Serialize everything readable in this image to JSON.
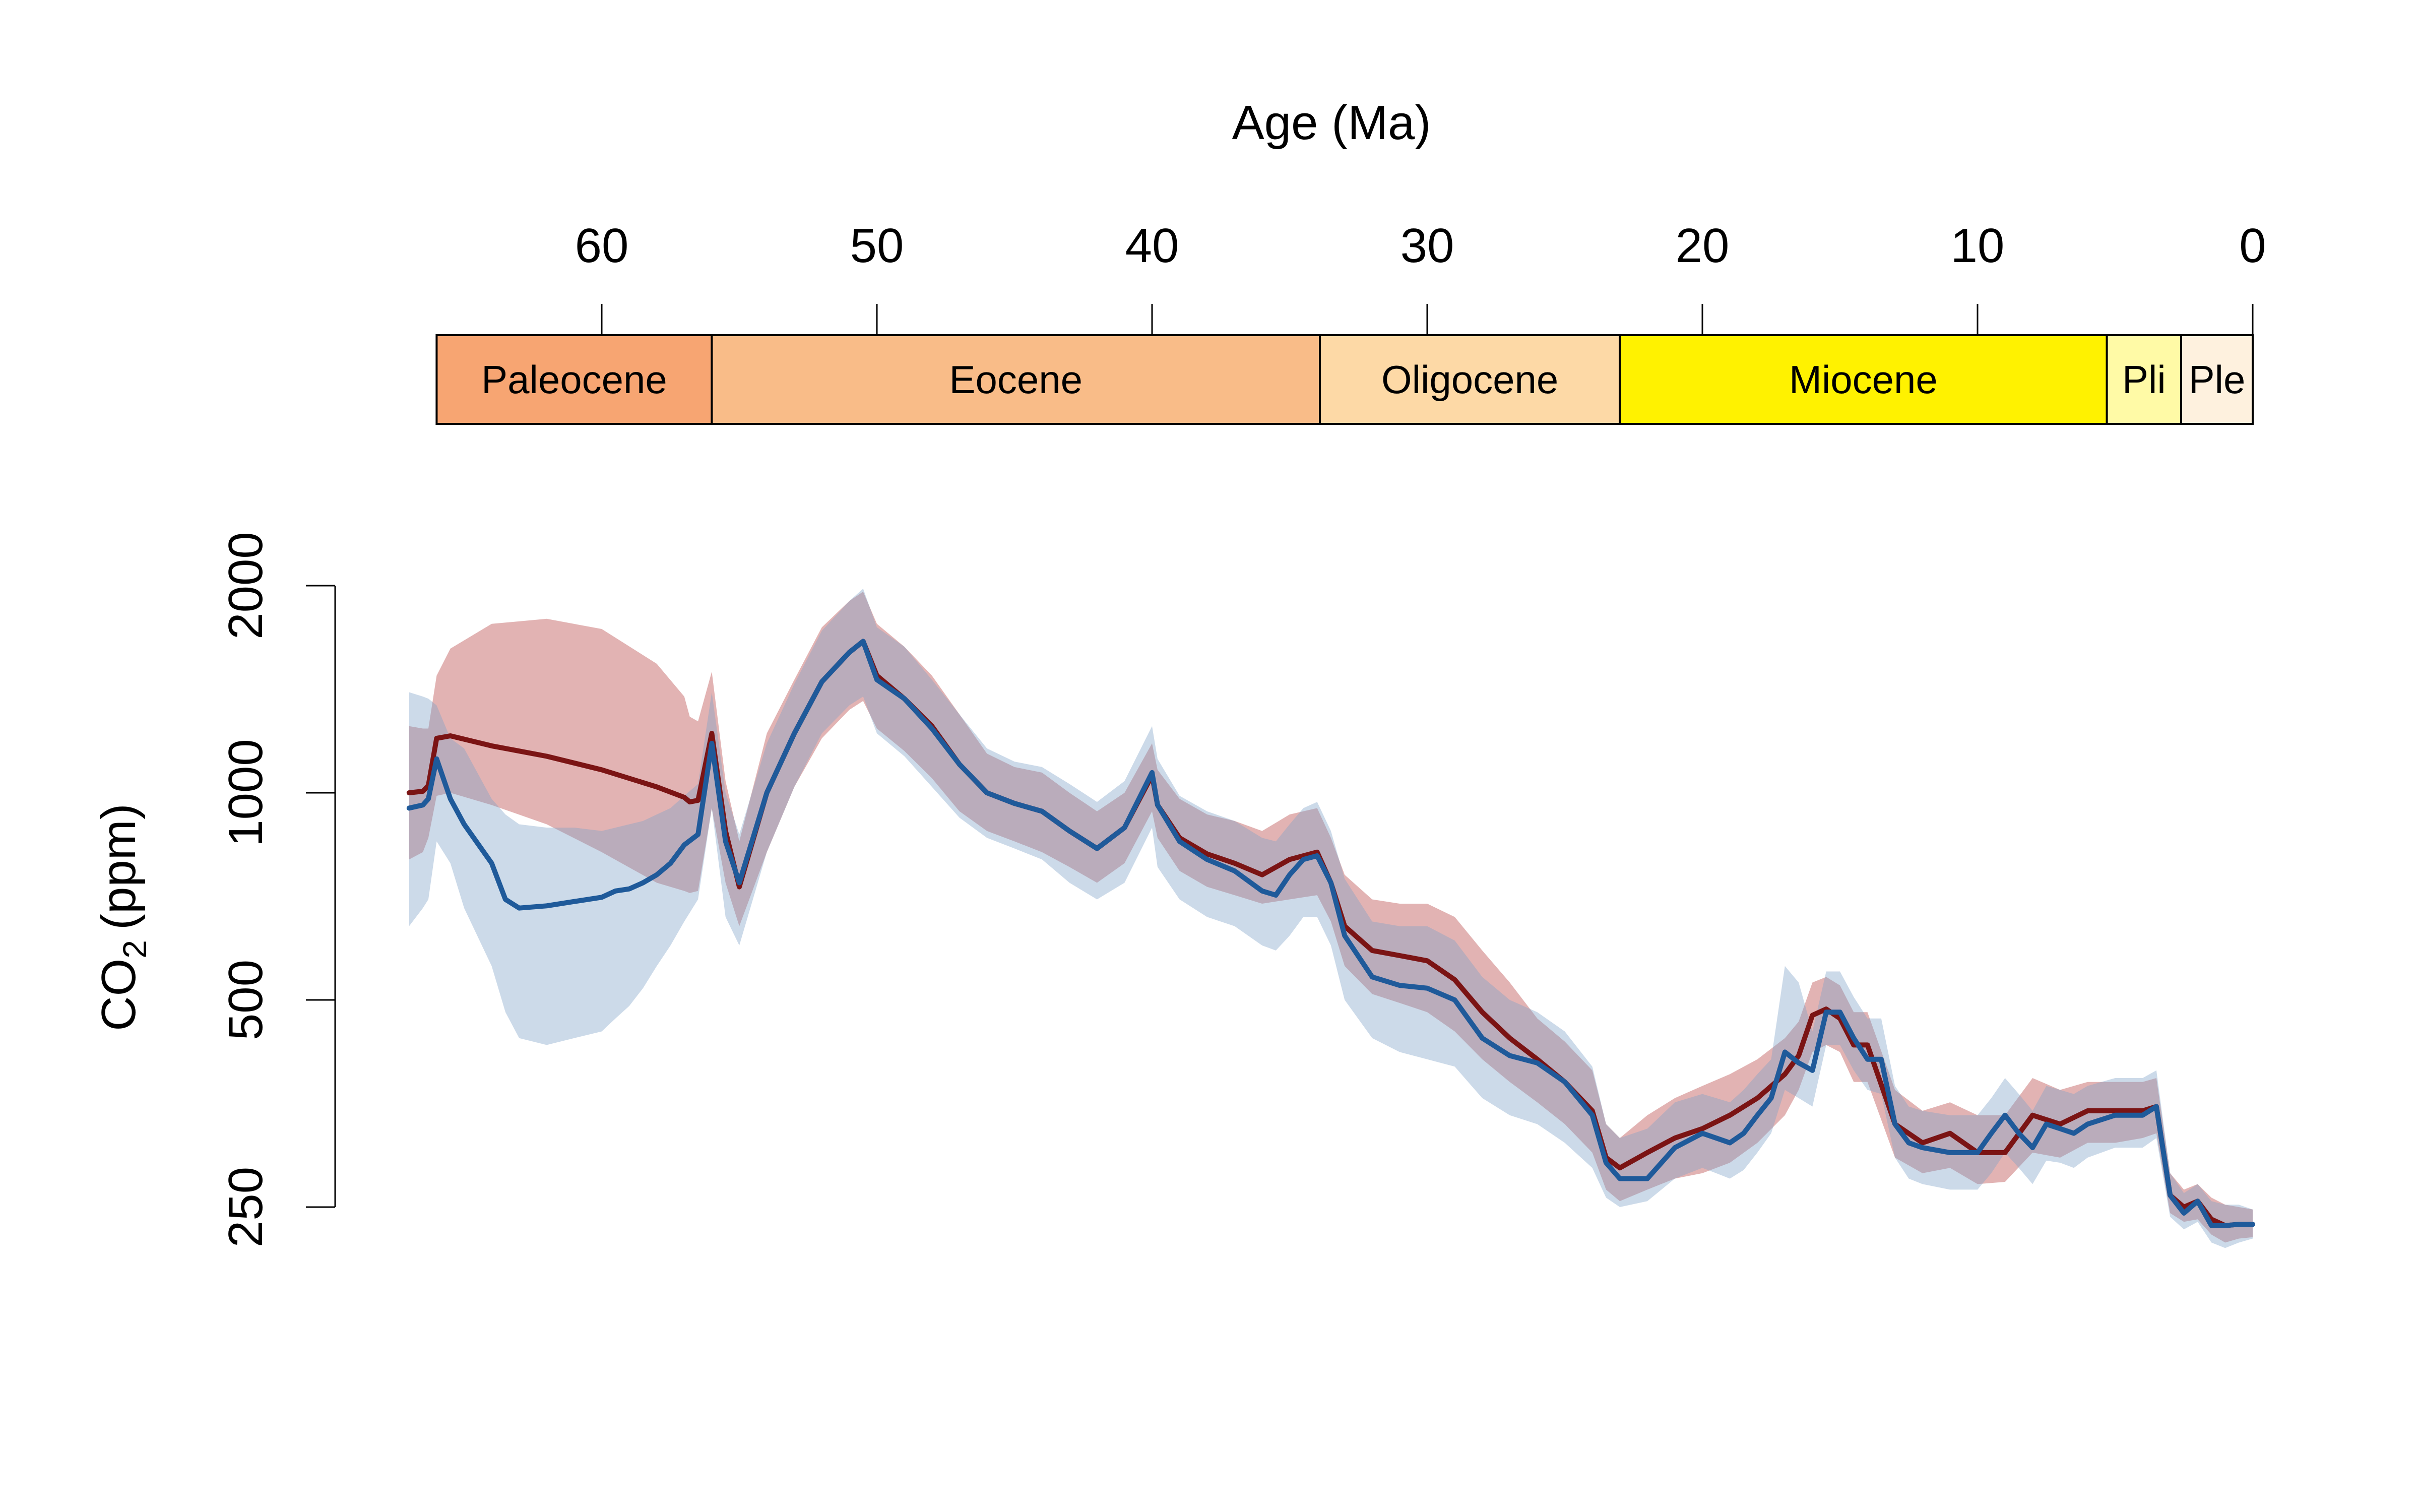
{
  "chart_data": {
    "type": "line",
    "xlabel": "Age (Ma)",
    "ylabel": "CO",
    "ylabel_sub": "2",
    "ylabel_unit": "(ppm)",
    "x_axis": {
      "range": [
        67,
        0
      ],
      "ticks": [
        60,
        50,
        40,
        30,
        20,
        10,
        0
      ],
      "tick_labels": [
        "60",
        "50",
        "40",
        "30",
        "20",
        "10",
        "0"
      ],
      "position": "top"
    },
    "y_axis": {
      "scale": "log",
      "range": [
        250,
        2000
      ],
      "ticks": [
        250,
        500,
        1000,
        2000
      ],
      "tick_labels": [
        "250",
        "500",
        "1000",
        "2000"
      ]
    },
    "epochs": [
      {
        "name": "Paleocene",
        "start": 66,
        "end": 56,
        "color": "#F7A572"
      },
      {
        "name": "Eocene",
        "start": 56,
        "end": 33.9,
        "color": "#F9BC88"
      },
      {
        "name": "Oligocene",
        "start": 33.9,
        "end": 23,
        "color": "#FDD9A6"
      },
      {
        "name": "Miocene",
        "start": 23,
        "end": 5.3,
        "color": "#FFF200"
      },
      {
        "name": "Pli",
        "start": 5.3,
        "end": 2.6,
        "color": "#FFFAA6"
      },
      {
        "name": "Ple",
        "start": 2.6,
        "end": 0,
        "color": "#FEF1DE"
      }
    ],
    "series": [
      {
        "color": "#7B1414",
        "band_color": "#B64242",
        "x": [
          67,
          66.5,
          66.3,
          66,
          65.5,
          64,
          62,
          60,
          58,
          57,
          56.8,
          56.5,
          56,
          55.5,
          55,
          54,
          53,
          52,
          51,
          50.5,
          50,
          49,
          48,
          47,
          46,
          45,
          44,
          43,
          42,
          41,
          40,
          39.8,
          39,
          38,
          37,
          36,
          35,
          34,
          33.5,
          33,
          32,
          31,
          30,
          29,
          28,
          27,
          26,
          25,
          24,
          23.5,
          23,
          22,
          21,
          20,
          19,
          18,
          17,
          16.5,
          16,
          15.5,
          15,
          14.5,
          14,
          13,
          12,
          11,
          10,
          9,
          8,
          7,
          6,
          5,
          4,
          3.5,
          3,
          2.5,
          2,
          1.5,
          1,
          0.5,
          0
        ],
        "y": [
          1000,
          1005,
          1025,
          1200,
          1210,
          1170,
          1130,
          1080,
          1020,
          985,
          970,
          975,
          1220,
          880,
          730,
          1000,
          1220,
          1450,
          1600,
          1660,
          1480,
          1370,
          1250,
          1100,
          1000,
          965,
          940,
          880,
          830,
          890,
          1060,
          960,
          860,
          815,
          790,
          760,
          800,
          820,
          740,
          640,
          590,
          580,
          570,
          535,
          480,
          440,
          410,
          380,
          345,
          295,
          285,
          300,
          315,
          325,
          340,
          360,
          390,
          415,
          475,
          485,
          470,
          430,
          430,
          330,
          310,
          320,
          300,
          300,
          340,
          330,
          345,
          345,
          345,
          350,
          260,
          250,
          255,
          240,
          235,
          236,
          236
        ],
        "lo": [
          800,
          820,
          860,
          990,
          1000,
          960,
          900,
          820,
          740,
          720,
          715,
          720,
          950,
          740,
          640,
          820,
          1020,
          1200,
          1320,
          1360,
          1240,
          1150,
          1050,
          940,
          880,
          850,
          820,
          780,
          740,
          790,
          940,
          860,
          770,
          730,
          710,
          690,
          700,
          710,
          650,
          560,
          510,
          495,
          480,
          450,
          410,
          380,
          355,
          330,
          300,
          265,
          255,
          265,
          275,
          280,
          290,
          310,
          340,
          370,
          420,
          430,
          420,
          380,
          380,
          295,
          280,
          285,
          270,
          272,
          300,
          295,
          310,
          310,
          315,
          320,
          245,
          238,
          240,
          228,
          222,
          225,
          226
        ],
        "hi": [
          1250,
          1240,
          1240,
          1480,
          1620,
          1760,
          1790,
          1730,
          1540,
          1380,
          1290,
          1270,
          1500,
          1040,
          850,
          1220,
          1460,
          1740,
          1900,
          1960,
          1760,
          1630,
          1480,
          1300,
          1140,
          1090,
          1070,
          1000,
          940,
          1000,
          1180,
          1080,
          980,
          930,
          910,
          880,
          930,
          950,
          860,
          760,
          700,
          690,
          690,
          660,
          590,
          530,
          470,
          435,
          395,
          330,
          315,
          340,
          360,
          375,
          390,
          410,
          440,
          465,
          530,
          540,
          525,
          480,
          480,
          370,
          345,
          355,
          340,
          340,
          385,
          370,
          380,
          380,
          380,
          385,
          280,
          265,
          270,
          258,
          252,
          250,
          248
        ]
      },
      {
        "color": "#1F5A9A",
        "band_color": "#7FA3C7",
        "x": [
          67,
          66.5,
          66.3,
          66,
          65.5,
          65,
          64,
          63.5,
          63,
          62,
          61,
          60,
          59.5,
          59,
          58.5,
          58,
          57.5,
          57,
          56.5,
          56,
          55.5,
          55,
          54,
          53,
          52,
          51,
          50.5,
          50,
          49,
          48,
          47,
          46,
          45,
          44,
          43,
          42,
          41,
          40,
          39.8,
          39,
          38,
          37,
          36,
          35.5,
          35,
          34.5,
          34,
          33.5,
          33,
          32,
          31,
          30,
          29,
          28,
          27,
          26,
          25,
          24,
          23.5,
          23,
          22,
          21,
          20,
          19.5,
          19,
          18.5,
          18,
          17.5,
          17,
          16.5,
          16,
          15.5,
          15,
          14.5,
          14,
          13.5,
          13,
          12.5,
          12,
          11,
          10,
          9.5,
          9,
          8.5,
          8,
          7.5,
          7,
          6.5,
          6,
          5,
          4,
          3.5,
          3,
          2.5,
          2,
          1.5,
          1,
          0.5,
          0
        ],
        "y": [
          950,
          960,
          980,
          1120,
          980,
          900,
          790,
          700,
          680,
          685,
          695,
          705,
          720,
          725,
          740,
          760,
          790,
          840,
          870,
          1180,
          850,
          740,
          1000,
          1220,
          1450,
          1600,
          1660,
          1460,
          1370,
          1240,
          1100,
          1000,
          965,
          940,
          880,
          830,
          890,
          1070,
          960,
          850,
          800,
          770,
          720,
          710,
          760,
          800,
          810,
          740,
          620,
          540,
          525,
          520,
          500,
          440,
          415,
          405,
          380,
          340,
          290,
          275,
          275,
          305,
          320,
          315,
          310,
          320,
          340,
          360,
          420,
          405,
          395,
          480,
          480,
          440,
          410,
          410,
          330,
          310,
          305,
          300,
          300,
          320,
          340,
          320,
          305,
          330,
          325,
          320,
          330,
          340,
          340,
          350,
          260,
          245,
          255,
          235,
          235,
          236,
          236
        ],
        "lo": [
          640,
          680,
          700,
          850,
          790,
          680,
          560,
          480,
          440,
          430,
          440,
          450,
          470,
          490,
          520,
          560,
          600,
          650,
          700,
          950,
          660,
          600,
          820,
          1020,
          1220,
          1340,
          1380,
          1220,
          1130,
          1020,
          920,
          860,
          830,
          800,
          740,
          700,
          740,
          890,
          780,
          700,
          660,
          640,
          600,
          590,
          620,
          660,
          660,
          600,
          500,
          440,
          420,
          410,
          400,
          360,
          340,
          330,
          310,
          285,
          258,
          250,
          255,
          275,
          285,
          280,
          275,
          283,
          300,
          320,
          370,
          360,
          350,
          430,
          430,
          395,
          370,
          365,
          295,
          275,
          270,
          265,
          265,
          280,
          300,
          285,
          270,
          292,
          290,
          285,
          295,
          305,
          305,
          315,
          242,
          232,
          238,
          222,
          218,
          222,
          225
        ],
        "hi": [
          1400,
          1380,
          1370,
          1340,
          1200,
          1160,
          980,
          930,
          900,
          890,
          890,
          880,
          890,
          900,
          910,
          930,
          950,
          990,
          1030,
          1400,
          1000,
          870,
          1180,
          1440,
          1720,
          1900,
          1980,
          1740,
          1630,
          1460,
          1300,
          1160,
          1110,
          1090,
          1030,
          970,
          1040,
          1250,
          1120,
          990,
          940,
          910,
          860,
          850,
          900,
          950,
          970,
          880,
          750,
          650,
          640,
          640,
          610,
          540,
          500,
          480,
          450,
          400,
          330,
          315,
          325,
          355,
          365,
          360,
          355,
          370,
          390,
          410,
          560,
          530,
          450,
          550,
          550,
          505,
          470,
          470,
          375,
          350,
          345,
          340,
          340,
          360,
          385,
          365,
          345,
          375,
          370,
          365,
          375,
          385,
          385,
          395,
          280,
          262,
          270,
          255,
          252,
          252,
          248
        ]
      }
    ]
  }
}
